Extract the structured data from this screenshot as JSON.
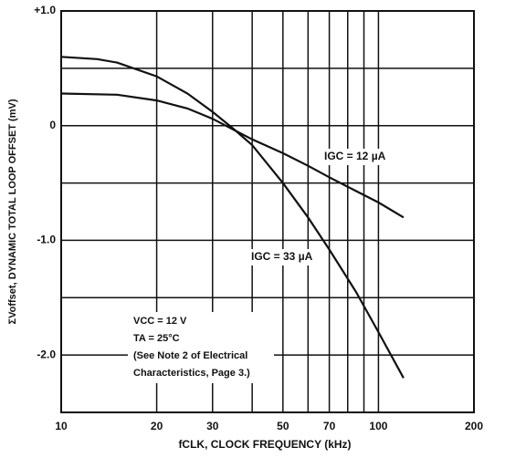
{
  "chart_data": {
    "type": "line",
    "x_label": "fCLK, CLOCK FREQUENCY (kHz)",
    "y_label": "ΣVoffset, DYNAMIC TOTAL LOOP OFFSET (mV)",
    "log_x": true,
    "xlim": [
      10,
      200
    ],
    "ylim": [
      -2.5,
      1.0
    ],
    "xticks": [
      10,
      20,
      30,
      50,
      70,
      100,
      200
    ],
    "xminor": [
      40,
      60,
      80,
      90
    ],
    "yticks": [
      {
        "value": 1,
        "label": "+1.0"
      },
      0,
      {
        "value": -1,
        "label": "-1.0"
      },
      {
        "value": -2,
        "label": "-2.0"
      }
    ],
    "yminor": [
      0.5,
      -0.5,
      -1.5,
      -2.5
    ],
    "grid": true,
    "series": [
      {
        "name": "IGC = 12 µA",
        "color": "#111111",
        "x": [
          10,
          15,
          20,
          25,
          30,
          33,
          40,
          50,
          60,
          70,
          85,
          100,
          120
        ],
        "values": [
          0.28,
          0.27,
          0.22,
          0.15,
          0.06,
          0.0,
          -0.12,
          -0.24,
          -0.35,
          -0.45,
          -0.57,
          -0.67,
          -0.8
        ]
      },
      {
        "name": "IGC = 33 µA",
        "color": "#111111",
        "x": [
          10,
          13,
          15,
          20,
          25,
          30,
          35,
          40,
          50,
          60,
          70,
          85,
          100,
          120
        ],
        "values": [
          0.6,
          0.58,
          0.55,
          0.43,
          0.28,
          0.12,
          -0.03,
          -0.17,
          -0.5,
          -0.8,
          -1.08,
          -1.45,
          -1.8,
          -2.2
        ]
      }
    ],
    "notes": [
      "VCC = 12 V",
      "TA = 25°C",
      "(See Note 2 of Electrical",
      "Characteristics, Page 3.)"
    ]
  }
}
